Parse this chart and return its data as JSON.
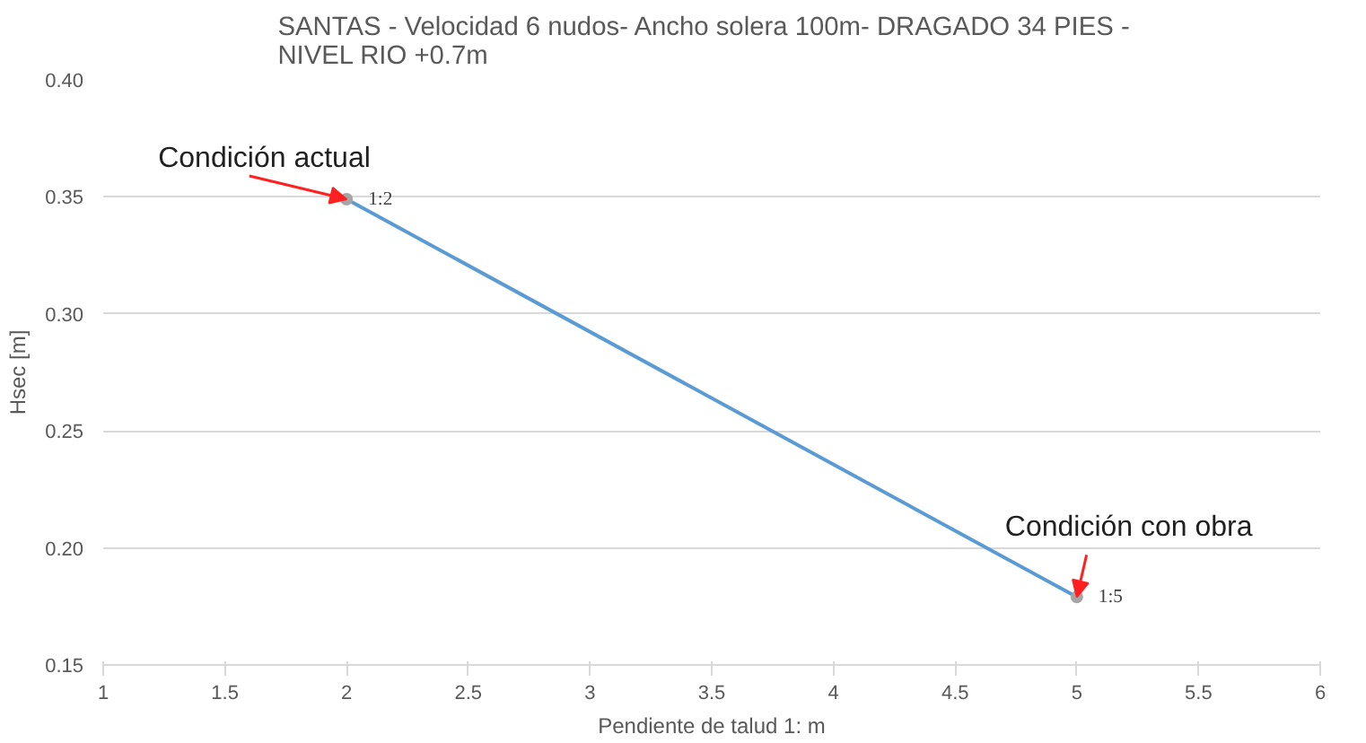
{
  "chart_data": {
    "type": "line",
    "title": "SANTAS -  Velocidad 6 nudos- Ancho solera 100m-  DRAGADO 34 PIES -\nNIVEL RIO +0.7m",
    "xlabel": "Pendiente de talud 1: m",
    "ylabel": "Hsec [m]",
    "x": [
      2,
      5
    ],
    "series": [
      {
        "color": "#5b9bd5",
        "values": [
          0.349,
          0.179
        ],
        "value_labels": [
          "1:2",
          "1:5"
        ]
      }
    ],
    "annotations": [
      {
        "text": "Condición actual",
        "x": 2,
        "y": 0.349
      },
      {
        "text": "Condición con obra",
        "x": 5,
        "y": 0.179
      }
    ],
    "xlim": [
      1,
      6
    ],
    "xticks": [
      1,
      1.5,
      2,
      2.5,
      3,
      3.5,
      4,
      4.5,
      5,
      5.5,
      6
    ],
    "ylim": [
      0.15,
      0.4
    ],
    "yticks": [
      {
        "value": 0.15,
        "label": "0.15"
      },
      {
        "value": 0.2,
        "label": "0.20"
      },
      {
        "value": 0.25,
        "label": "0.25"
      },
      {
        "value": 0.3,
        "label": "0.30"
      },
      {
        "value": 0.35,
        "label": "0.35"
      },
      {
        "value": 0.4,
        "label": "0.40"
      }
    ],
    "grid": "y",
    "marker": "circle",
    "line_style": "solid"
  }
}
